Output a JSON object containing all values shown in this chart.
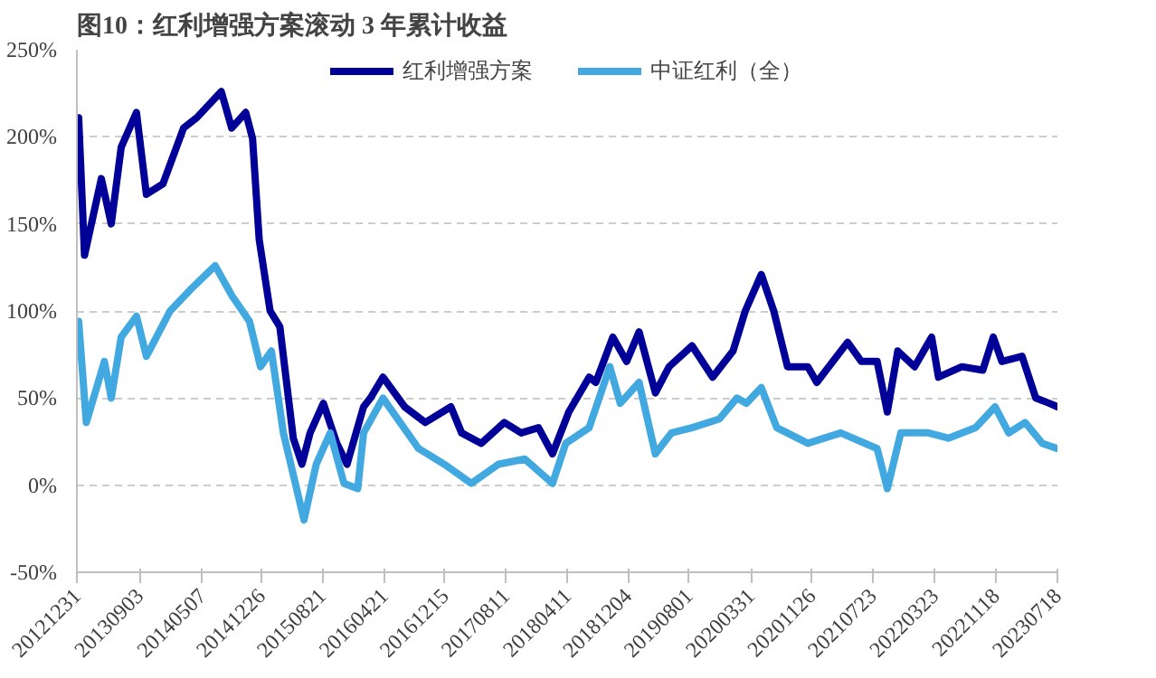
{
  "chart_data": {
    "type": "line",
    "title": "图10：红利增强方案滚动 3 年累计收益",
    "xlim": [
      "2012-12-31",
      "2023-07-18"
    ],
    "xticks": [
      {
        "value": "2012-12-31",
        "label": "20121231"
      },
      {
        "value": "2013-09-03",
        "label": "20130903"
      },
      {
        "value": "2014-05-07",
        "label": "20140507"
      },
      {
        "value": "2014-12-26",
        "label": "20141226"
      },
      {
        "value": "2015-08-21",
        "label": "20150821"
      },
      {
        "value": "2016-04-21",
        "label": "20160421"
      },
      {
        "value": "2016-12-15",
        "label": "20161215"
      },
      {
        "value": "2017-08-11",
        "label": "20170811"
      },
      {
        "value": "2018-04-11",
        "label": "20180411"
      },
      {
        "value": "2018-12-04",
        "label": "20181204"
      },
      {
        "value": "2019-08-01",
        "label": "20190801"
      },
      {
        "value": "2020-03-31",
        "label": "20200331"
      },
      {
        "value": "2020-11-26",
        "label": "20201126"
      },
      {
        "value": "2021-07-23",
        "label": "20210723"
      },
      {
        "value": "2022-03-23",
        "label": "20220323"
      },
      {
        "value": "2022-11-18",
        "label": "20221118"
      },
      {
        "value": "2023-07-18",
        "label": "20230718"
      }
    ],
    "ylim": [
      -50,
      250
    ],
    "yticks": [
      {
        "value": -50,
        "label": "-50%"
      },
      {
        "value": 0,
        "label": "0%"
      },
      {
        "value": 50,
        "label": "50%"
      },
      {
        "value": 100,
        "label": "100%"
      },
      {
        "value": 150,
        "label": "150%"
      },
      {
        "value": 200,
        "label": "200%"
      },
      {
        "value": 250,
        "label": "250%"
      }
    ],
    "grid": "y",
    "legend": "top",
    "line_style": "solid",
    "series": [
      {
        "name": "红利增强方案",
        "color": "#000099",
        "x": [
          "2013-01-07",
          "2013-01-30",
          "2013-04-06",
          "2013-05-15",
          "2013-06-23",
          "2013-08-22",
          "2013-09-30",
          "2013-12-04",
          "2014-02-23",
          "2014-04-16",
          "2014-07-21",
          "2014-08-31",
          "2014-10-25",
          "2014-11-21",
          "2014-12-17",
          "2015-01-29",
          "2015-03-08",
          "2015-04-30",
          "2015-06-03",
          "2015-07-05",
          "2015-08-26",
          "2015-10-18",
          "2015-11-27",
          "2016-01-31",
          "2016-02-27",
          "2016-04-16",
          "2016-07-10",
          "2016-09-29",
          "2017-01-08",
          "2017-02-19",
          "2017-05-07",
          "2017-08-06",
          "2017-10-11",
          "2017-12-18",
          "2018-02-11",
          "2018-04-16",
          "2018-07-05",
          "2018-07-31",
          "2018-10-06",
          "2018-11-29",
          "2019-01-17",
          "2019-03-22",
          "2019-05-15",
          "2019-08-13",
          "2019-11-02",
          "2020-01-21",
          "2020-03-09",
          "2020-05-11",
          "2020-06-29",
          "2020-08-22",
          "2020-11-10",
          "2020-12-15",
          "2021-04-15",
          "2021-06-08",
          "2021-08-09",
          "2021-09-18",
          "2021-10-29",
          "2022-01-03",
          "2022-03-11",
          "2022-04-07",
          "2022-07-08",
          "2022-09-28",
          "2022-11-08",
          "2022-12-12",
          "2023-03-01",
          "2023-04-24",
          "2023-06-16",
          "2023-07-18"
        ],
        "values": [
          211,
          132,
          176,
          150,
          194,
          214,
          167,
          173,
          205,
          211,
          226,
          205,
          214,
          199,
          141,
          100,
          91,
          27,
          12,
          30,
          47,
          24,
          12,
          45,
          50,
          62,
          45,
          36,
          45,
          30,
          24,
          36,
          30,
          33,
          18,
          42,
          62,
          59,
          85,
          71,
          88,
          53,
          68,
          80,
          62,
          77,
          100,
          121,
          100,
          68,
          68,
          59,
          82,
          71,
          71,
          42,
          77,
          68,
          85,
          62,
          68,
          66,
          85,
          71,
          74,
          50,
          47,
          45
        ]
      },
      {
        "name": "中证红利（全）",
        "color": "#41a8e0",
        "x": [
          "2013-01-07",
          "2013-02-06",
          "2013-04-18",
          "2013-05-15",
          "2013-06-23",
          "2013-08-22",
          "2013-09-30",
          "2014-01-01",
          "2014-03-20",
          "2014-06-27",
          "2014-08-31",
          "2014-11-09",
          "2014-12-22",
          "2015-02-03",
          "2015-03-22",
          "2015-06-11",
          "2015-07-29",
          "2015-09-22",
          "2015-11-15",
          "2016-01-08",
          "2016-01-31",
          "2016-04-16",
          "2016-09-03",
          "2016-12-13",
          "2017-03-29",
          "2017-07-14",
          "2017-10-25",
          "2018-02-11",
          "2018-04-04",
          "2018-07-05",
          "2018-09-24",
          "2018-11-04",
          "2019-01-17",
          "2019-03-22",
          "2019-05-24",
          "2019-08-13",
          "2019-11-28",
          "2020-02-05",
          "2020-03-14",
          "2020-05-11",
          "2020-07-11",
          "2020-11-10",
          "2021-03-19",
          "2021-08-09",
          "2021-09-18",
          "2021-11-10",
          "2022-02-26",
          "2022-05-16",
          "2022-08-31",
          "2022-11-15",
          "2023-01-08",
          "2023-03-13",
          "2023-05-20",
          "2023-07-18"
        ],
        "values": [
          94,
          36,
          71,
          50,
          85,
          97,
          74,
          100,
          112,
          126,
          109,
          94,
          68,
          77,
          30,
          -20,
          12,
          30,
          1,
          -2,
          30,
          50,
          21,
          12,
          1,
          12,
          15,
          1,
          24,
          33,
          68,
          47,
          59,
          18,
          30,
          33,
          38,
          50,
          47,
          56,
          33,
          24,
          30,
          21,
          -2,
          30,
          30,
          27,
          33,
          45,
          30,
          36,
          24,
          21
        ]
      }
    ]
  }
}
